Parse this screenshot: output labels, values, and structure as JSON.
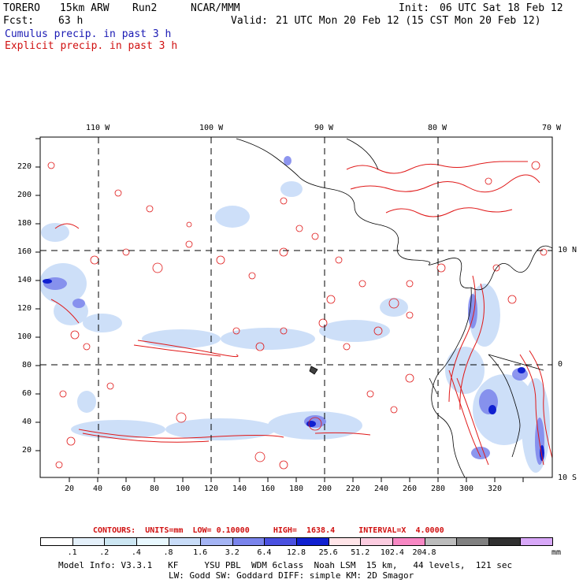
{
  "header": {
    "model": "TORERO",
    "resolution": "15km ARW",
    "run": "Run2",
    "org": "NCAR/MMM",
    "init_label": "Init:",
    "init_value": "06 UTC Sat 18 Feb 12",
    "fcst_label": "Fcst:",
    "fcst_value": "63 h",
    "valid_label": "Valid:",
    "valid_value": "21 UTC Mon 20 Feb 12 (15 CST Mon 20 Feb 12)",
    "field1": "Cumulus precip. in past 3 h",
    "field2": "Explicit precip. in past 3 h"
  },
  "map": {
    "top_lon_labels": [
      "110 W",
      "100 W",
      "90 W",
      "80 W",
      "70 W"
    ],
    "right_lat_labels": [
      "10 N",
      "0",
      "10 S"
    ],
    "y_ticks": [
      "20",
      "40",
      "60",
      "80",
      "100",
      "120",
      "140",
      "160",
      "180",
      "200",
      "220"
    ],
    "x_ticks": [
      "20",
      "40",
      "60",
      "80",
      "100",
      "120",
      "140",
      "160",
      "180",
      "200",
      "220",
      "240",
      "260",
      "280",
      "300",
      "320"
    ]
  },
  "contours": {
    "label": "CONTOURS:",
    "units_label": "UNITS=mm",
    "low_label": "LOW=",
    "low_value": "0.10000",
    "high_label": "HIGH=",
    "high_value": "1638.4",
    "interval_label": "INTERVAL=X",
    "interval_value": "4.0000"
  },
  "colorbar": {
    "colors": [
      "#ffffff",
      "#e4f0fa",
      "#cce6f2",
      "#e8f8ff",
      "#c8dcf8",
      "#a4b4f4",
      "#7a84ec",
      "#4a50e0",
      "#1020d0",
      "#ffe4e8",
      "#fccce0",
      "#f888c4",
      "#bcbcbc",
      "#808080",
      "#303030",
      "#d8a8f8"
    ],
    "labels": [
      ".1",
      ".2",
      ".4",
      ".8",
      "1.6",
      "3.2",
      "6.4",
      "12.8",
      "25.6",
      "51.2",
      "102.4",
      "204.8"
    ],
    "unit": "mm"
  },
  "footer": {
    "line1": "Model Info: V3.3.1   KF     YSU PBL  WDM 6class  Noah LSM  15 km,   44 levels,  121 sec",
    "line2": "LW: Godd SW: Goddard DIFF: simple KM: 2D Smagor"
  }
}
